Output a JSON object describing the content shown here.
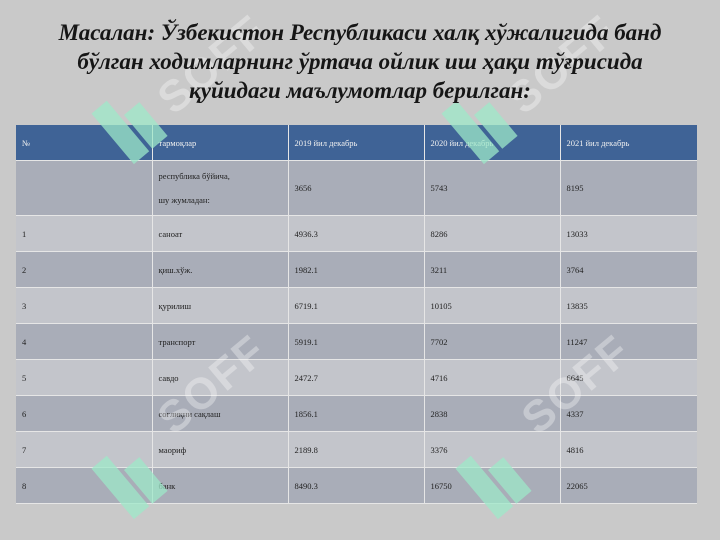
{
  "title": "Масалан: Ўзбекистон Республикаси халқ хўжалигида банд бўлган ходимларнинг ўртача ойлик иш ҳақи тўғрисида қуйидаги маълумотлар берилган:",
  "watermark_text": "SOFF",
  "table": {
    "headers": [
      "№",
      "тармоқлар",
      "2019 йил декабрь",
      "2020 йил декабрь",
      "2021 йил декабрь"
    ],
    "summary_row": {
      "num": "",
      "label_line1": "республика бўйича,",
      "label_line2": "шу жумладан:",
      "v2019": "3656",
      "v2020": "5743",
      "v2021": "8195"
    },
    "rows": [
      {
        "num": "1",
        "label": "саноат",
        "v2019": "4936.3",
        "v2020": "8286",
        "v2021": "13033"
      },
      {
        "num": "2",
        "label": "қиш.хўж.",
        "v2019": "1982.1",
        "v2020": "3211",
        "v2021": "3764"
      },
      {
        "num": "3",
        "label": "қурилиш",
        "v2019": "6719.1",
        "v2020": "10105",
        "v2021": "13835"
      },
      {
        "num": "4",
        "label": "транспорт",
        "v2019": "5919.1",
        "v2020": "7702",
        "v2021": "11247"
      },
      {
        "num": "5",
        "label": "савдо",
        "v2019": "2472.7",
        "v2020": "4716",
        "v2021": "6645"
      },
      {
        "num": "6",
        "label": "соғлиқни сақлаш",
        "v2019": "1856.1",
        "v2020": "2838",
        "v2021": "4337"
      },
      {
        "num": "7",
        "label": "маориф",
        "v2019": "2189.8",
        "v2020": "3376",
        "v2021": "4816"
      },
      {
        "num": "8",
        "label": "банк",
        "v2019": "8490.3",
        "v2020": "16750",
        "v2021": "22065"
      }
    ]
  },
  "colors": {
    "header_bg": "#3f6396",
    "row_light": "#c3c5cb",
    "row_dark": "#a9adb8",
    "background": "#c9c9c9",
    "watermark": "#9ee8c8"
  }
}
